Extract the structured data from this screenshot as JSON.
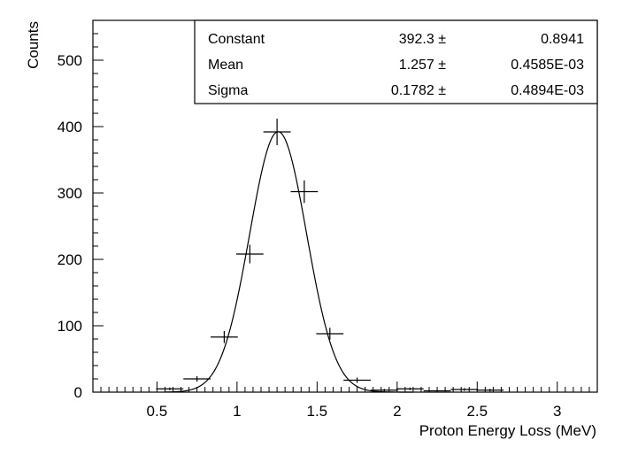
{
  "chart_data": {
    "type": "scatter",
    "title": "",
    "xlabel": "Proton Energy Loss (MeV)",
    "ylabel": "Counts",
    "xlim": [
      0.1,
      3.25
    ],
    "ylim": [
      0,
      560
    ],
    "x_ticks": [
      "0.5",
      "1",
      "1.5",
      "2",
      "2.5",
      "3"
    ],
    "y_ticks": [
      "0",
      "100",
      "200",
      "300",
      "400",
      "500"
    ],
    "grid": false,
    "series": [
      {
        "style": "error-cross",
        "x": [
          0.58,
          0.75,
          0.92,
          1.08,
          1.25,
          1.42,
          1.58,
          1.75,
          1.92,
          2.08,
          2.25,
          2.42,
          2.58
        ],
        "y": [
          5,
          20,
          83,
          208,
          392,
          302,
          88,
          18,
          3,
          5,
          2,
          4,
          3
        ],
        "x_err": [
          0.085,
          0.085,
          0.085,
          0.085,
          0.085,
          0.085,
          0.085,
          0.085,
          0.085,
          0.085,
          0.085,
          0.085,
          0.085
        ],
        "y_err": [
          2,
          4,
          9,
          14,
          20,
          17,
          9,
          4,
          2,
          2,
          1,
          2,
          2
        ]
      }
    ],
    "fit": {
      "type": "gaussian",
      "constant": 392.3,
      "mean": 1.257,
      "sigma": 0.1782
    },
    "stats_box": {
      "position": "top-right",
      "rows": [
        {
          "name": "Constant",
          "value": "392.3 ±",
          "error": "0.8941"
        },
        {
          "name": "Mean",
          "value": "1.257 ±",
          "error": "0.4585E-03"
        },
        {
          "name": "Sigma",
          "value": "0.1782 ±",
          "error": "0.4894E-03"
        }
      ]
    }
  }
}
